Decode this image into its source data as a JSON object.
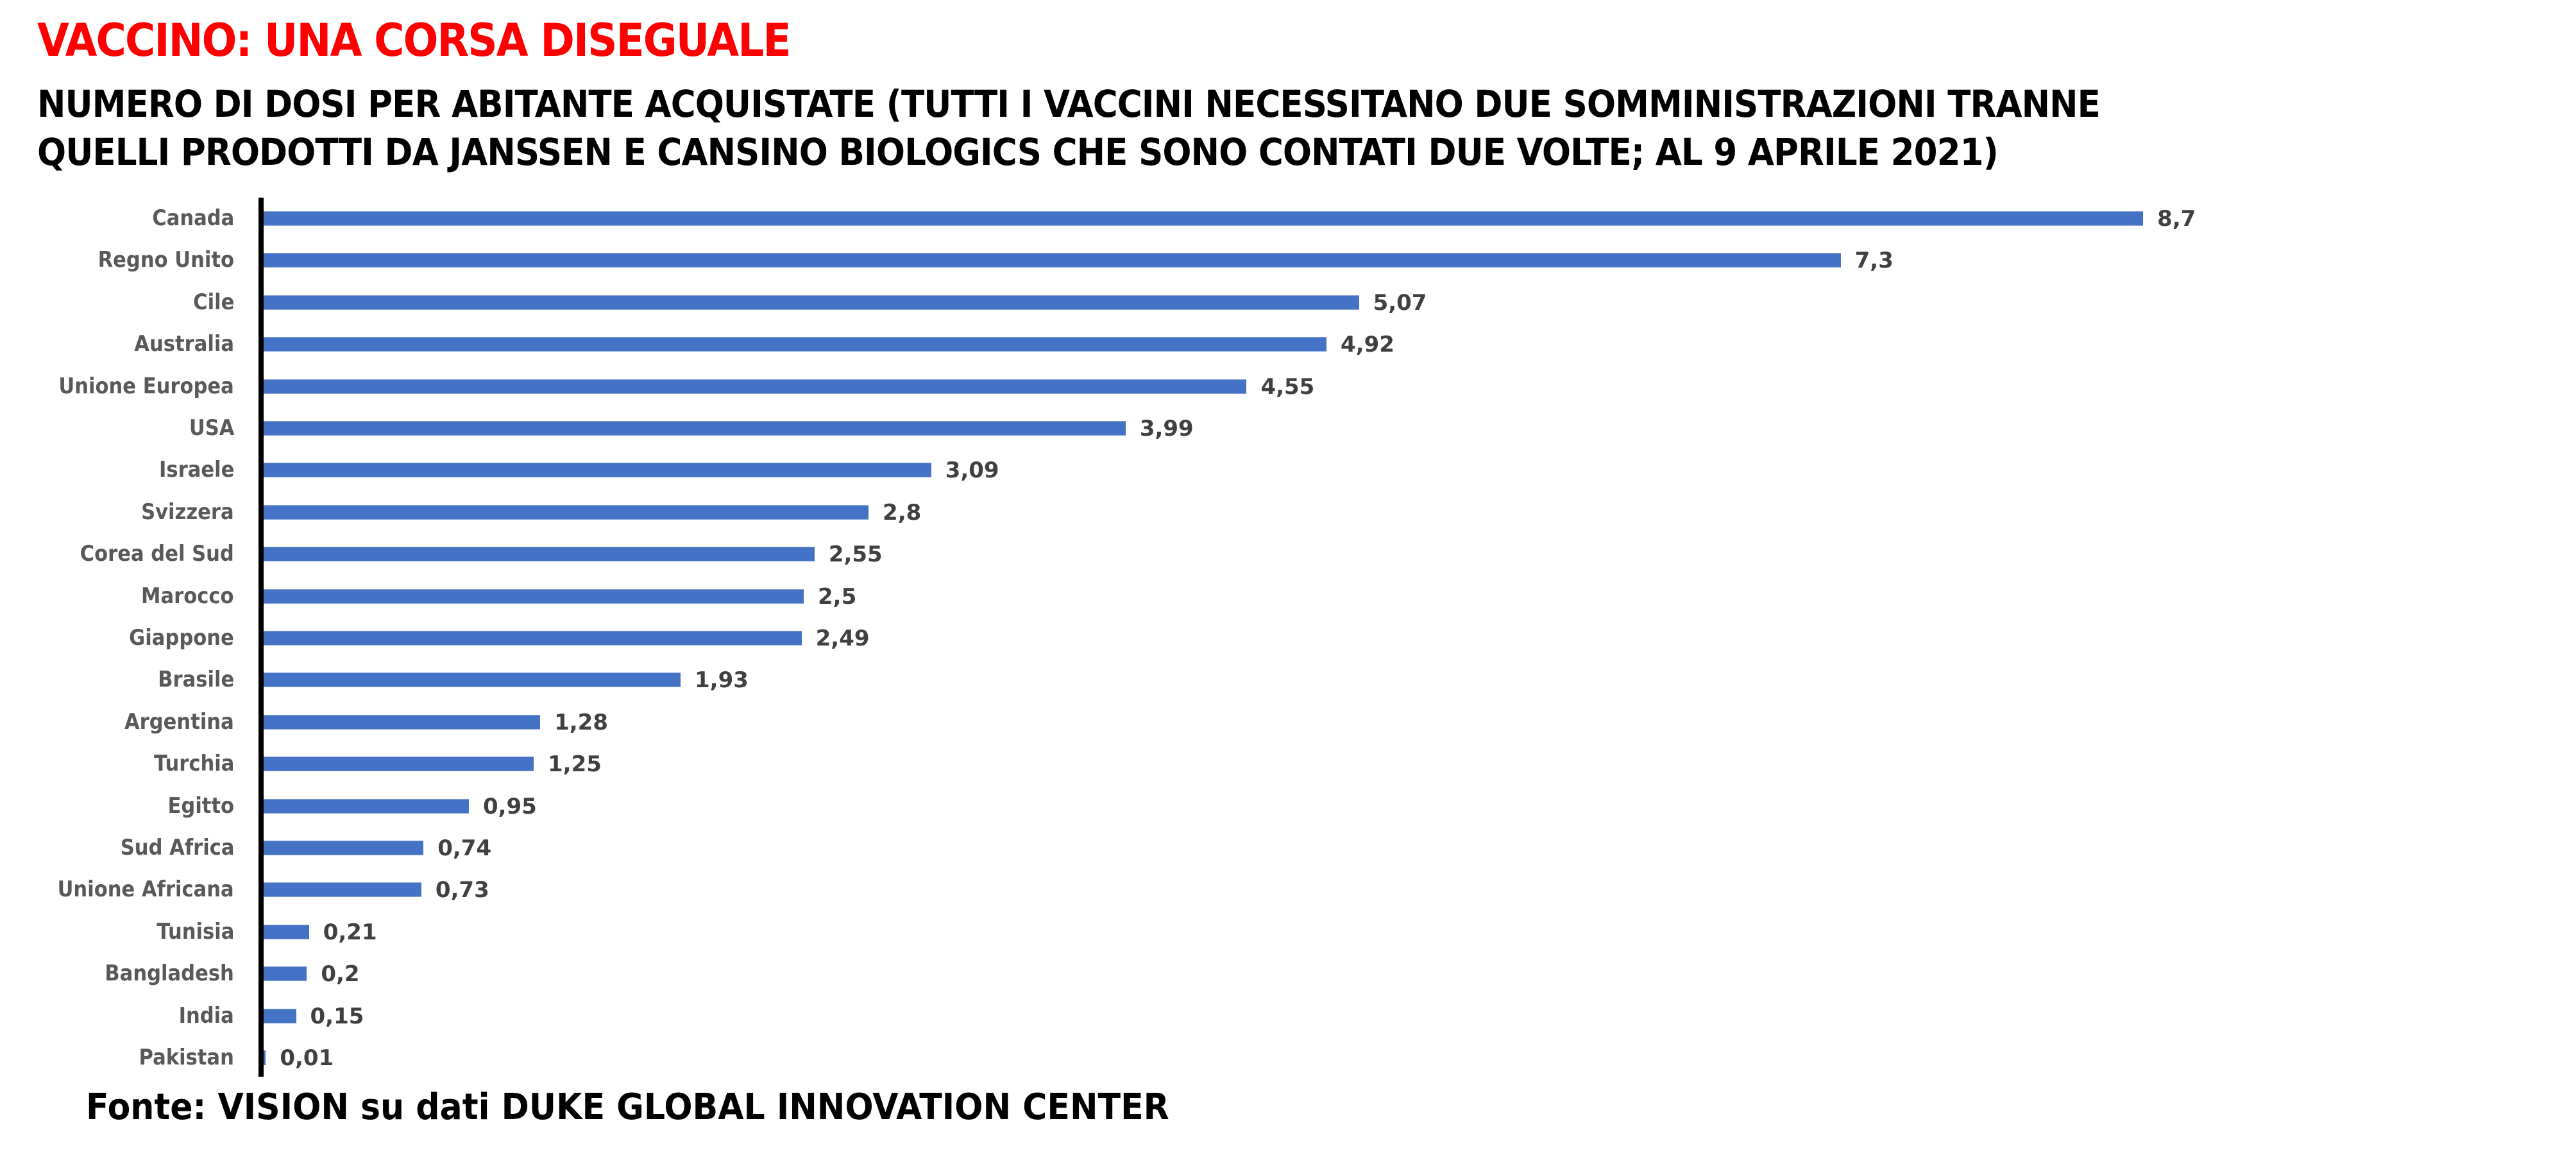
{
  "header": {
    "title": "VACCINO: UNA CORSA DISEGUALE",
    "subtitle_line1": "NUMERO DI DOSI PER ABITANTE ACQUISTATE (TUTTI I VACCINI NECESSITANO DUE SOMMINISTRAZIONI TRANNE",
    "subtitle_line2": "QUELLI PRODOTTI DA JANSSEN E CANSINO BIOLOGICS CHE SONO CONTATI DUE VOLTE; AL 9 APRILE 2021)"
  },
  "footer": {
    "source": "Fonte: VISION su dati DUKE GLOBAL INNOVATION CENTER"
  },
  "colors": {
    "title": "#ff0000",
    "bar": "#4472c4",
    "label": "#595959",
    "value": "#404040"
  },
  "chart_data": {
    "type": "bar",
    "orientation": "horizontal",
    "title": "VACCINO: UNA CORSA DISEGUALE",
    "subtitle": "NUMERO DI DOSI PER ABITANTE ACQUISTATE (TUTTI I VACCINI NECESSITANO DUE SOMMINISTRAZIONI TRANNE QUELLI PRODOTTI DA JANSSEN E CANSINO BIOLOGICS CHE SONO CONTATI DUE VOLTE; AL 9 APRILE 2021)",
    "xlabel": "",
    "ylabel": "",
    "grid": false,
    "legend": null,
    "xlim": [
      0,
      8.7
    ],
    "categories": [
      "Canada",
      "Regno Unito",
      "Cile",
      "Australia",
      "Unione Europea",
      "USA",
      "Israele",
      "Svizzera",
      "Corea del Sud",
      "Marocco",
      "Giappone",
      "Brasile",
      "Argentina",
      "Turchia",
      "Egitto",
      "Sud Africa",
      "Unione Africana",
      "Tunisia",
      "Bangladesh",
      "India",
      "Pakistan"
    ],
    "values": [
      8.7,
      7.3,
      5.07,
      4.92,
      4.55,
      3.99,
      3.09,
      2.8,
      2.55,
      2.5,
      2.49,
      1.93,
      1.28,
      1.25,
      0.95,
      0.74,
      0.73,
      0.21,
      0.2,
      0.15,
      0.01
    ],
    "value_labels": [
      "8,7",
      "7,3",
      "5,07",
      "4,92",
      "4,55",
      "3,99",
      "3,09",
      "2,8",
      "2,55",
      "2,5",
      "2,49",
      "1,93",
      "1,28",
      "1,25",
      "0,95",
      "0,74",
      "0,73",
      "0,21",
      "0,2",
      "0,15",
      "0,01"
    ],
    "source": "Fonte: VISION su dati DUKE GLOBAL INNOVATION CENTER"
  }
}
